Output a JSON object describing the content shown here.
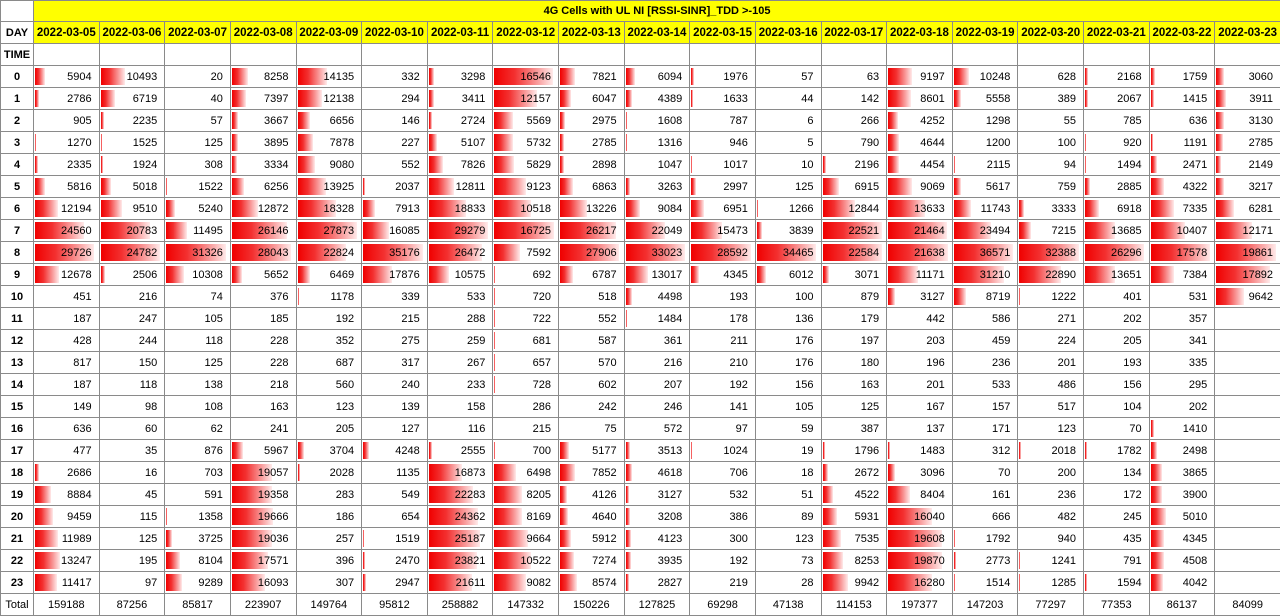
{
  "title": "4G Cells with UL NI [RSSI-SINR]_TDD >-105",
  "day_label": "DAY",
  "time_label": "TIME",
  "total_label": "Total",
  "bar_color": "#f00000",
  "dates": [
    "2022-03-05",
    "2022-03-06",
    "2022-03-07",
    "2022-03-08",
    "2022-03-09",
    "2022-03-10",
    "2022-03-11",
    "2022-03-12",
    "2022-03-13",
    "2022-03-14",
    "2022-03-15",
    "2022-03-16",
    "2022-03-17",
    "2022-03-18",
    "2022-03-19",
    "2022-03-20",
    "2022-03-21",
    "2022-03-22",
    "2022-03-23"
  ],
  "hours": [
    "0",
    "1",
    "2",
    "3",
    "4",
    "5",
    "6",
    "7",
    "8",
    "9",
    "10",
    "11",
    "12",
    "13",
    "14",
    "15",
    "16",
    "17",
    "18",
    "19",
    "20",
    "21",
    "22",
    "23"
  ],
  "rows": [
    [
      "5904",
      "10493",
      "20",
      "8258",
      "14135",
      "332",
      "3298",
      "16546",
      "7821",
      "6094",
      "1976",
      "57",
      "63",
      "9197",
      "10248",
      "628",
      "2168",
      "1759",
      "3060"
    ],
    [
      "2786",
      "6719",
      "40",
      "7397",
      "12138",
      "294",
      "3411",
      "12157",
      "6047",
      "4389",
      "1633",
      "44",
      "142",
      "8601",
      "5558",
      "389",
      "2067",
      "1415",
      "3911"
    ],
    [
      "905",
      "2235",
      "57",
      "3667",
      "6656",
      "146",
      "2724",
      "5569",
      "2975",
      "1608",
      "787",
      "6",
      "266",
      "4252",
      "1298",
      "55",
      "785",
      "636",
      "3130"
    ],
    [
      "1270",
      "1525",
      "125",
      "3895",
      "7878",
      "227",
      "5107",
      "5732",
      "2785",
      "1316",
      "946",
      "5",
      "790",
      "4644",
      "1200",
      "100",
      "920",
      "1191",
      "2785"
    ],
    [
      "2335",
      "1924",
      "308",
      "3334",
      "9080",
      "552",
      "7826",
      "5829",
      "2898",
      "1047",
      "1017",
      "10",
      "2196",
      "4454",
      "2115",
      "94",
      "1494",
      "2471",
      "2149"
    ],
    [
      "5816",
      "5018",
      "1522",
      "6256",
      "13925",
      "2037",
      "12811",
      "9123",
      "6863",
      "3263",
      "2997",
      "125",
      "6915",
      "9069",
      "5617",
      "759",
      "2885",
      "4322",
      "3217"
    ],
    [
      "12194",
      "9510",
      "5240",
      "12872",
      "18328",
      "7913",
      "18833",
      "10518",
      "13226",
      "9084",
      "6951",
      "1266",
      "12844",
      "13633",
      "11743",
      "3333",
      "6918",
      "7335",
      "6281"
    ],
    [
      "24560",
      "20783",
      "11495",
      "26146",
      "27873",
      "16085",
      "29279",
      "16725",
      "26217",
      "22049",
      "15473",
      "3839",
      "22521",
      "21464",
      "23494",
      "7215",
      "13685",
      "10407",
      "12171"
    ],
    [
      "29726",
      "24782",
      "31326",
      "28043",
      "22824",
      "35176",
      "26472",
      "7592",
      "27906",
      "33023",
      "28592",
      "34465",
      "22584",
      "21638",
      "36571",
      "32388",
      "26296",
      "17578",
      "19861"
    ],
    [
      "12678",
      "2506",
      "10308",
      "5652",
      "6469",
      "17876",
      "10575",
      "692",
      "6787",
      "13017",
      "4345",
      "6012",
      "3071",
      "11171",
      "31210",
      "22890",
      "13651",
      "7384",
      "17892"
    ],
    [
      "451",
      "216",
      "74",
      "376",
      "1178",
      "339",
      "533",
      "720",
      "518",
      "4498",
      "193",
      "100",
      "879",
      "3127",
      "8719",
      "1222",
      "401",
      "531",
      "9642"
    ],
    [
      "187",
      "247",
      "105",
      "185",
      "192",
      "215",
      "288",
      "722",
      "552",
      "1484",
      "178",
      "136",
      "179",
      "442",
      "586",
      "271",
      "202",
      "357",
      ""
    ],
    [
      "428",
      "244",
      "118",
      "228",
      "352",
      "275",
      "259",
      "681",
      "587",
      "361",
      "211",
      "176",
      "197",
      "203",
      "459",
      "224",
      "205",
      "341",
      ""
    ],
    [
      "817",
      "150",
      "125",
      "228",
      "687",
      "317",
      "267",
      "657",
      "570",
      "216",
      "210",
      "176",
      "180",
      "196",
      "236",
      "201",
      "193",
      "335",
      ""
    ],
    [
      "187",
      "118",
      "138",
      "218",
      "560",
      "240",
      "233",
      "728",
      "602",
      "207",
      "192",
      "156",
      "163",
      "201",
      "533",
      "486",
      "156",
      "295",
      ""
    ],
    [
      "149",
      "98",
      "108",
      "163",
      "123",
      "139",
      "158",
      "286",
      "242",
      "246",
      "141",
      "105",
      "125",
      "167",
      "157",
      "517",
      "104",
      "202",
      ""
    ],
    [
      "636",
      "60",
      "62",
      "241",
      "205",
      "127",
      "116",
      "215",
      "75",
      "572",
      "97",
      "59",
      "387",
      "137",
      "171",
      "123",
      "70",
      "1410",
      ""
    ],
    [
      "477",
      "35",
      "876",
      "5967",
      "3704",
      "4248",
      "2555",
      "700",
      "5177",
      "3513",
      "1024",
      "19",
      "1796",
      "1483",
      "312",
      "2018",
      "1782",
      "2498",
      ""
    ],
    [
      "2686",
      "16",
      "703",
      "19057",
      "2028",
      "1135",
      "16873",
      "6498",
      "7852",
      "4618",
      "706",
      "18",
      "2672",
      "3096",
      "70",
      "200",
      "134",
      "3865",
      ""
    ],
    [
      "8884",
      "45",
      "591",
      "19358",
      "283",
      "549",
      "22283",
      "8205",
      "4126",
      "3127",
      "532",
      "51",
      "4522",
      "8404",
      "161",
      "236",
      "172",
      "3900",
      ""
    ],
    [
      "9459",
      "115",
      "1358",
      "19666",
      "186",
      "654",
      "24362",
      "8169",
      "4640",
      "3208",
      "386",
      "89",
      "5931",
      "16040",
      "666",
      "482",
      "245",
      "5010",
      ""
    ],
    [
      "11989",
      "125",
      "3725",
      "19036",
      "257",
      "1519",
      "25187",
      "9664",
      "5912",
      "4123",
      "300",
      "123",
      "7535",
      "19608",
      "1792",
      "940",
      "435",
      "4345",
      ""
    ],
    [
      "13247",
      "195",
      "8104",
      "17571",
      "396",
      "2470",
      "23821",
      "10522",
      "7274",
      "3935",
      "192",
      "73",
      "8253",
      "19870",
      "2773",
      "1241",
      "791",
      "4508",
      ""
    ],
    [
      "11417",
      "97",
      "9289",
      "16093",
      "307",
      "2947",
      "21611",
      "9082",
      "8574",
      "2827",
      "219",
      "28",
      "9942",
      "16280",
      "1514",
      "1285",
      "1594",
      "4042",
      ""
    ]
  ],
  "totals": [
    "159188",
    "87256",
    "85817",
    "223907",
    "149764",
    "95812",
    "258882",
    "147332",
    "150226",
    "127825",
    "69298",
    "47138",
    "114153",
    "197377",
    "147203",
    "77297",
    "77353",
    "86137",
    "84099"
  ]
}
